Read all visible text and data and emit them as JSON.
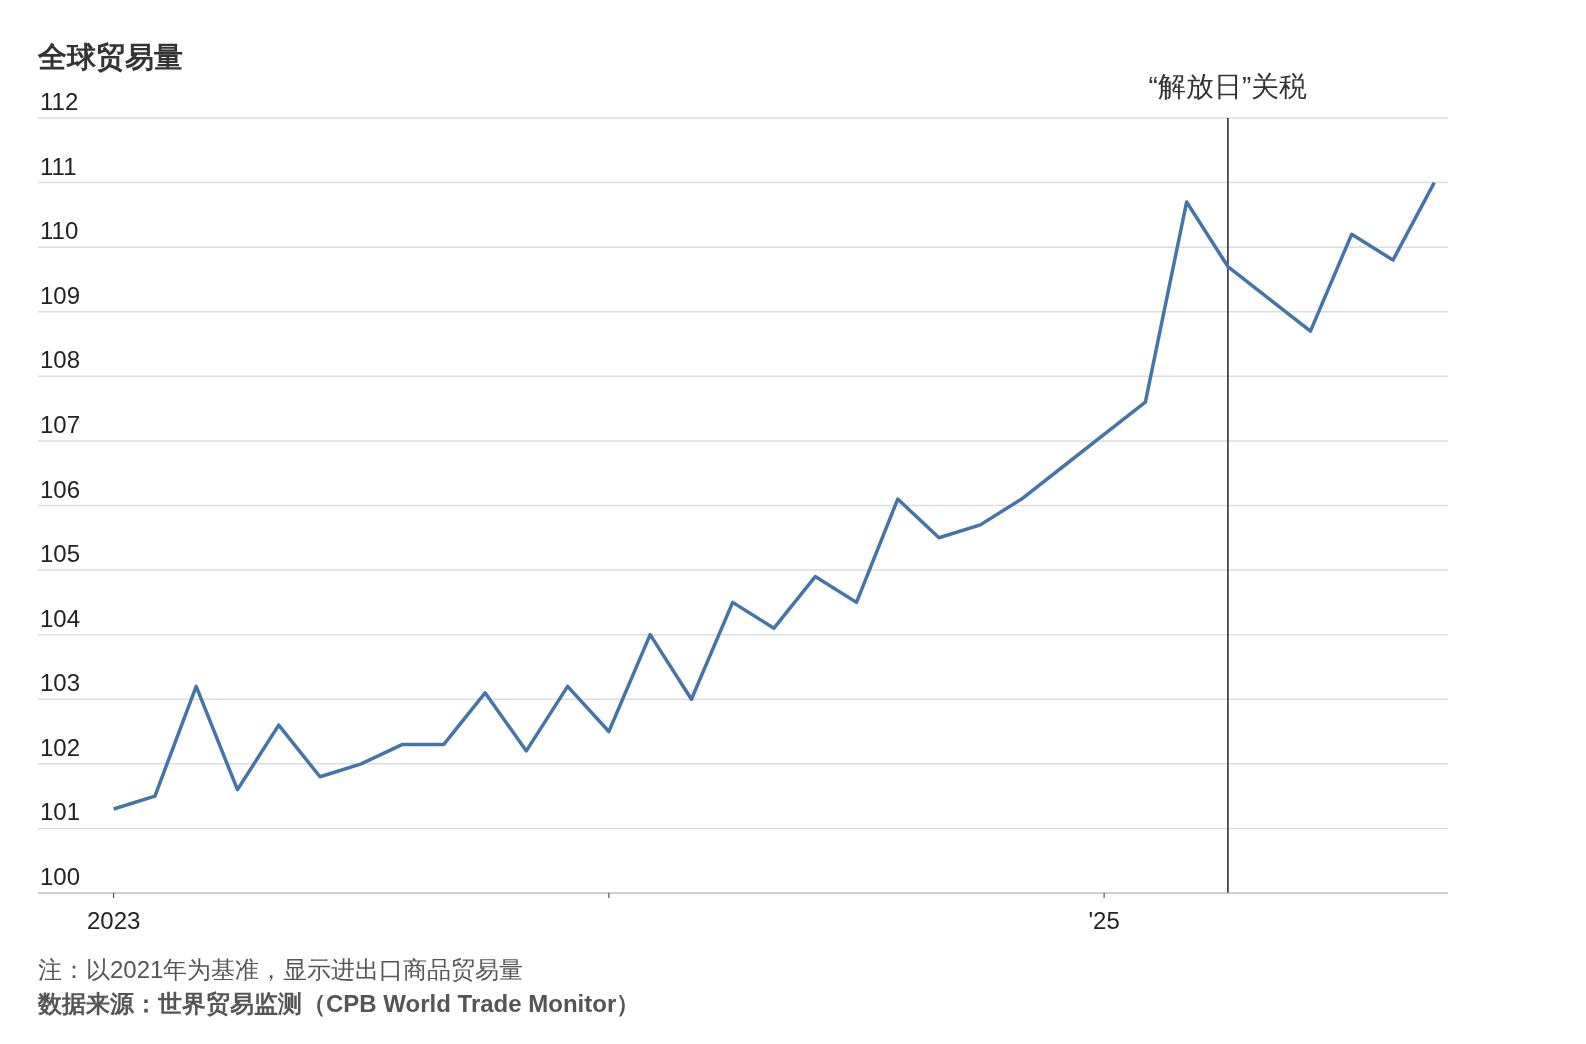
{
  "chart_data": {
    "type": "line",
    "title": "全球贸易量",
    "x": [
      "2023-01",
      "2023-02",
      "2023-03",
      "2023-04",
      "2023-05",
      "2023-06",
      "2023-07",
      "2023-08",
      "2023-09",
      "2023-10",
      "2023-11",
      "2023-12",
      "2024-01",
      "2024-02",
      "2024-03",
      "2024-04",
      "2024-05",
      "2024-06",
      "2024-07",
      "2024-08",
      "2024-09",
      "2024-10",
      "2024-11",
      "2024-12",
      "2025-01",
      "2025-02",
      "2025-03",
      "2025-04",
      "2025-05",
      "2025-06",
      "2025-07",
      "2025-08",
      "2025-09"
    ],
    "series": [
      {
        "color": "#4575a8",
        "values": [
          101.3,
          101.5,
          103.2,
          101.6,
          102.6,
          101.8,
          102.0,
          102.3,
          102.3,
          103.1,
          102.2,
          103.2,
          102.5,
          104.0,
          103.0,
          104.5,
          104.1,
          104.9,
          104.5,
          106.1,
          105.5,
          105.7,
          106.1,
          106.6,
          107.1,
          107.6,
          110.7,
          109.7,
          109.2,
          108.7,
          110.2,
          109.8,
          111.0
        ]
      }
    ],
    "xlim": [
      "2022-11-06",
      "2025-09-11"
    ],
    "xticks": [
      {
        "value": "2023-01",
        "label": "2023"
      },
      {
        "value": "2024-01",
        "label": null
      },
      {
        "value": "2025-01",
        "label": "'25"
      }
    ],
    "ylim": [
      100,
      112
    ],
    "yticks": [
      100,
      101,
      102,
      103,
      104,
      105,
      106,
      107,
      108,
      109,
      110,
      111,
      112
    ],
    "grid": "y",
    "marker": "none",
    "line_style": "solid",
    "ref_lines": [
      {
        "axis": "x",
        "value": "2025-04",
        "label": "“解放日”关税",
        "color": "#222222"
      }
    ],
    "annotations": [
      "注：以2021年为基准，显示进出口商品贸易量",
      "数据来源：世界贸易监测（CPB World Trade Monitor）"
    ]
  }
}
